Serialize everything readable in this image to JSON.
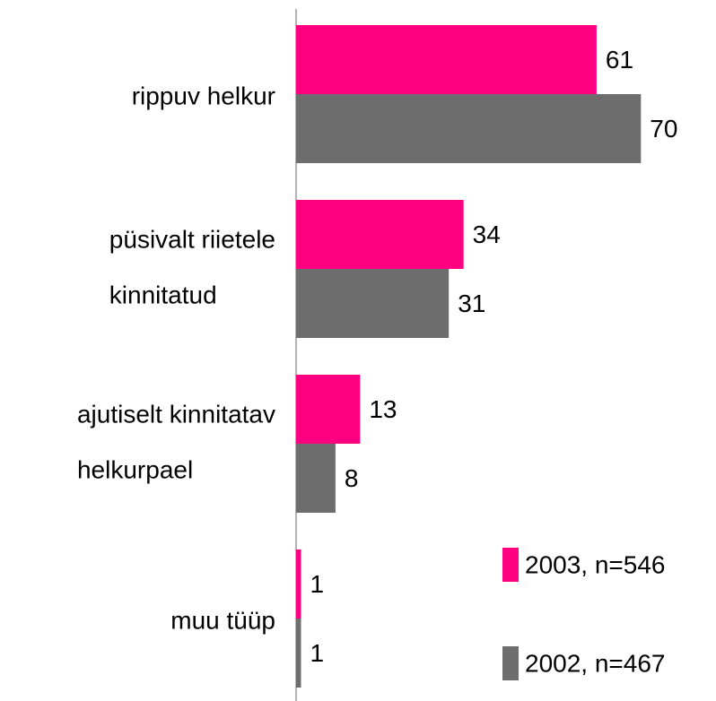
{
  "chart_data": {
    "type": "bar",
    "orientation": "horizontal",
    "categories": [
      [
        "rippuv helkur"
      ],
      [
        "püsivalt riietele",
        "kinnitatud"
      ],
      [
        "ajutiselt kinnitatav",
        "helkurpael"
      ],
      [
        "muu tüüp"
      ]
    ],
    "series": [
      {
        "name": "2003, n=546",
        "color": "#ff0080",
        "values": [
          61,
          34,
          13,
          1
        ]
      },
      {
        "name": "2002, n=467",
        "color": "#6d6d6d",
        "values": [
          70,
          31,
          8,
          1
        ]
      }
    ],
    "legend": "bottom-right"
  }
}
